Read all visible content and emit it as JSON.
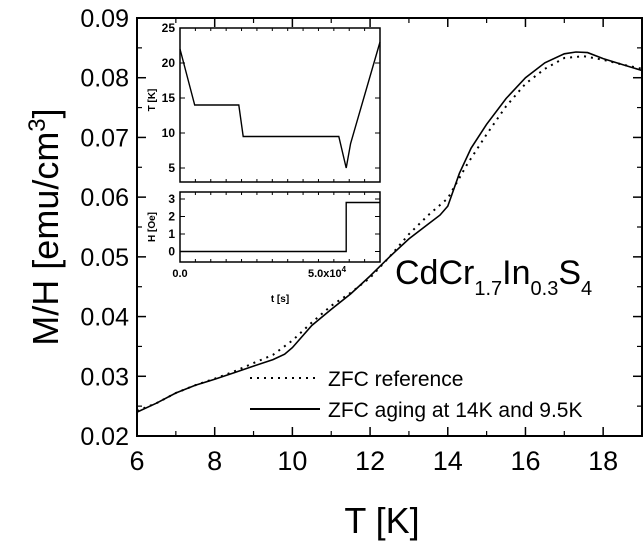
{
  "chart_data": [
    {
      "type": "line",
      "xlabel": "T [K]",
      "ylabel_main": "M/H [emu/cm",
      "ylabel_sup": "3",
      "ylabel_close": "]",
      "xlim": [
        6,
        19
      ],
      "ylim": [
        0.02,
        0.09
      ],
      "xticks": [
        6,
        8,
        10,
        12,
        14,
        16,
        18
      ],
      "yticks": [
        0.02,
        0.03,
        0.04,
        0.05,
        0.06,
        0.07,
        0.08,
        0.09
      ],
      "xtick_labels": [
        "6",
        "8",
        "10",
        "12",
        "14",
        "16",
        "18"
      ],
      "ytick_labels": [
        "0.02",
        "0.03",
        "0.04",
        "0.05",
        "0.06",
        "0.07",
        "0.08",
        "0.09"
      ],
      "grid": false,
      "legend_position": "bottom-right",
      "annotation": {
        "base": "CdCr",
        "sub1": "1.7",
        "mid": "In",
        "sub2": "0.3",
        "end": "S",
        "sub3": "4"
      },
      "series": [
        {
          "name": "ZFC reference",
          "style": "dotted",
          "x": [
            6.0,
            6.5,
            7.0,
            7.5,
            8.0,
            8.5,
            9.0,
            9.5,
            10.0,
            10.5,
            11.0,
            11.5,
            12.0,
            12.5,
            13.0,
            13.5,
            14.0,
            14.5,
            15.0,
            15.5,
            16.0,
            16.5,
            17.0,
            17.5,
            18.0,
            18.5,
            19.0
          ],
          "y": [
            0.0242,
            0.0255,
            0.0272,
            0.0285,
            0.0296,
            0.0308,
            0.0322,
            0.0336,
            0.036,
            0.039,
            0.0418,
            0.044,
            0.0465,
            0.05,
            0.0538,
            0.057,
            0.0598,
            0.0655,
            0.0705,
            0.0752,
            0.079,
            0.0815,
            0.0833,
            0.0836,
            0.083,
            0.0822,
            0.0815
          ]
        },
        {
          "name": "ZFC aging at 14K and 9.5K",
          "style": "solid",
          "x": [
            6.0,
            6.5,
            7.0,
            7.5,
            8.0,
            8.5,
            9.0,
            9.5,
            9.8,
            10.0,
            10.5,
            11.0,
            11.5,
            12.0,
            12.5,
            13.0,
            13.5,
            13.8,
            14.0,
            14.3,
            14.6,
            15.0,
            15.5,
            16.0,
            16.5,
            17.0,
            17.3,
            17.6,
            18.0,
            18.5,
            19.0
          ],
          "y": [
            0.024,
            0.0255,
            0.0272,
            0.0285,
            0.0295,
            0.0306,
            0.0317,
            0.0328,
            0.0337,
            0.0348,
            0.0385,
            0.0412,
            0.0438,
            0.0468,
            0.05,
            0.053,
            0.0555,
            0.057,
            0.0585,
            0.064,
            0.0682,
            0.0722,
            0.0765,
            0.08,
            0.0825,
            0.084,
            0.0843,
            0.0842,
            0.0832,
            0.0822,
            0.0812
          ]
        }
      ]
    },
    {
      "type": "line",
      "ylabel": "T [K]",
      "ylim": [
        3,
        25
      ],
      "yticks": [
        5,
        10,
        15,
        20,
        25
      ],
      "ytick_labels": [
        "5",
        "10",
        "15",
        "20",
        "25"
      ],
      "xlim": [
        0,
        68000
      ],
      "series": [
        {
          "x": [
            0,
            5000,
            20000,
            21500,
            35000,
            54000,
            56500,
            58000,
            68000
          ],
          "y": [
            22,
            14,
            14,
            9.5,
            9.5,
            9.5,
            5,
            8.5,
            23
          ]
        }
      ]
    },
    {
      "type": "line",
      "xlabel": "t [s]",
      "ylabel": "H [Oe]",
      "xlim": [
        0,
        68000
      ],
      "ylim": [
        -0.6,
        3.4
      ],
      "xticks": [
        0,
        50000
      ],
      "xtick_labels": [
        "0.0",
        "5.0x10",
        "4"
      ],
      "yticks": [
        0,
        1,
        2,
        3
      ],
      "ytick_labels": [
        "0",
        "1",
        "2",
        "3"
      ],
      "series": [
        {
          "x": [
            0,
            56500,
            56500,
            68000
          ],
          "y": [
            0,
            0,
            2.8,
            2.8
          ]
        }
      ]
    }
  ]
}
